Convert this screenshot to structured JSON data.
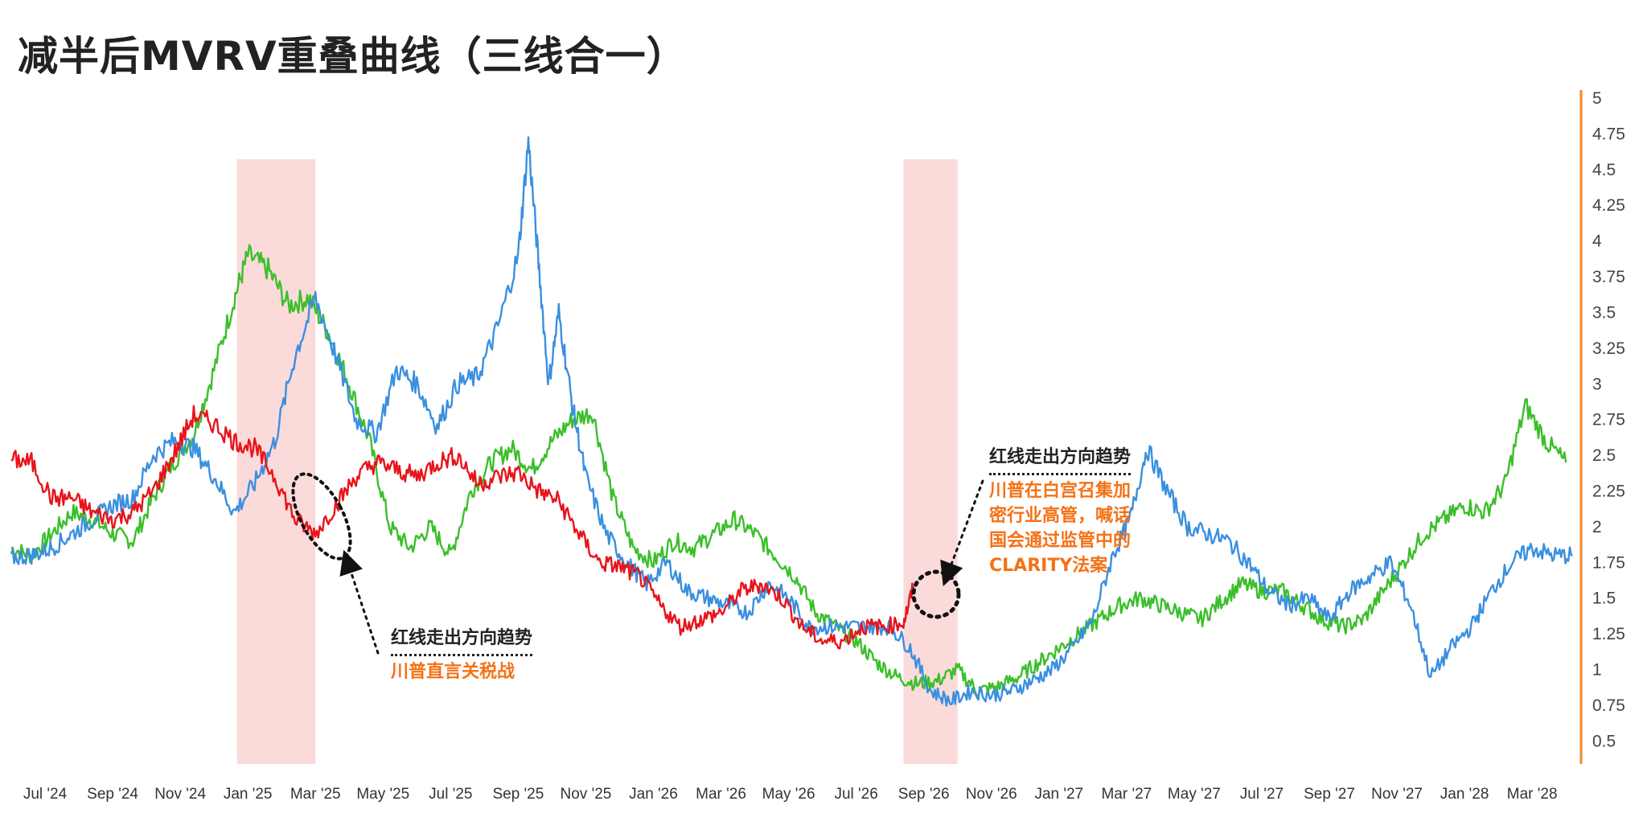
{
  "title": "减半后MVRV重叠曲线（三线合一）",
  "colors": {
    "red": "#e8141b",
    "green": "#3bbf2b",
    "blue": "#3a8fe0",
    "shade": "#fbdada",
    "axis": "#f08a24"
  },
  "annotations": [
    {
      "head": "红线走出方向趋势",
      "body": [
        "川普直言关税战"
      ]
    },
    {
      "head": "红线走出方向趋势",
      "body": [
        "川普在白宫召集加",
        "密行业高管，喊话",
        "国会通过监管中的",
        "CLARITY法案"
      ]
    }
  ],
  "chart_data": {
    "type": "line",
    "title": "减半后MVRV重叠曲线（三线合一）",
    "x_tick_labels": [
      "Jul '24",
      "Sep '24",
      "Nov '24",
      "Jan '25",
      "Mar '25",
      "May '25",
      "Jul '25",
      "Sep '25",
      "Nov '25",
      "Jan '26",
      "Mar '26",
      "May '26",
      "Jul '26",
      "Sep '26",
      "Nov '26",
      "Jan '27",
      "Mar '27",
      "May '27",
      "Jul '27",
      "Sep '27",
      "Nov '27",
      "Jan '28",
      "Mar '28"
    ],
    "ylim": [
      0.35,
      5
    ],
    "y_ticks": [
      0.5,
      0.75,
      1,
      1.25,
      1.5,
      1.75,
      2,
      2.25,
      2.5,
      2.75,
      3,
      3.25,
      3.5,
      3.75,
      4,
      4.25,
      4.5,
      4.75,
      5
    ],
    "y_axis_side": "right",
    "x_range": [
      0,
      23.2
    ],
    "shaded_regions": [
      [
        3.34,
        4.5
      ],
      [
        13.2,
        14.0
      ]
    ],
    "series": [
      {
        "color": "red",
        "x": [
          0,
          0.3,
          0.6,
          0.9,
          1.2,
          1.5,
          1.8,
          2.1,
          2.4,
          2.7,
          3.0,
          3.3,
          3.6,
          3.9,
          4.2,
          4.5,
          4.8,
          5.1,
          5.4,
          5.7,
          6.0,
          6.3,
          6.6,
          6.9,
          7.2,
          7.5,
          7.8,
          8.1,
          8.4,
          8.7,
          9.0,
          9.3,
          9.6,
          9.9,
          10.2,
          10.5,
          10.8,
          11.1,
          11.4,
          11.7,
          12.0,
          12.3,
          12.6,
          12.9,
          13.2,
          13.35
        ],
        "values": [
          2.47,
          2.45,
          2.2,
          2.2,
          2.1,
          2.05,
          2.1,
          2.25,
          2.5,
          2.78,
          2.72,
          2.6,
          2.55,
          2.35,
          2.05,
          1.95,
          2.15,
          2.35,
          2.45,
          2.4,
          2.35,
          2.45,
          2.5,
          2.3,
          2.35,
          2.38,
          2.25,
          2.18,
          1.95,
          1.75,
          1.72,
          1.65,
          1.45,
          1.3,
          1.35,
          1.4,
          1.55,
          1.6,
          1.5,
          1.3,
          1.2,
          1.2,
          1.3,
          1.3,
          1.33,
          1.58
        ]
      },
      {
        "color": "green",
        "x": [
          0,
          0.3,
          0.6,
          0.9,
          1.2,
          1.5,
          1.8,
          2.1,
          2.4,
          2.7,
          3.0,
          3.3,
          3.5,
          3.8,
          4.1,
          4.4,
          4.7,
          5.0,
          5.3,
          5.6,
          5.9,
          6.2,
          6.5,
          6.8,
          7.1,
          7.4,
          7.7,
          8.0,
          8.3,
          8.6,
          8.9,
          9.2,
          9.5,
          9.8,
          10.1,
          10.4,
          10.7,
          11.0,
          11.3,
          11.6,
          11.9,
          12.2,
          12.5,
          12.8,
          13.1,
          13.4,
          13.7,
          14.0,
          14.3,
          14.6,
          14.9,
          15.2,
          15.5,
          15.8,
          16.1,
          16.4,
          16.7,
          17.0,
          17.3,
          17.6,
          17.9,
          18.2,
          18.5,
          18.8,
          19.1,
          19.4,
          19.7,
          20.0,
          20.3,
          20.6,
          20.9,
          21.2,
          21.5,
          21.8,
          22.1,
          22.4,
          22.7,
          23.0
        ],
        "values": [
          1.85,
          1.8,
          1.95,
          2.1,
          2.05,
          1.95,
          1.9,
          2.2,
          2.45,
          2.65,
          3.1,
          3.6,
          3.9,
          3.8,
          3.55,
          3.6,
          3.35,
          3.0,
          2.6,
          2.0,
          1.85,
          2.0,
          1.8,
          2.25,
          2.45,
          2.55,
          2.4,
          2.6,
          2.75,
          2.8,
          2.2,
          1.85,
          1.75,
          1.9,
          1.85,
          1.95,
          2.05,
          1.95,
          1.8,
          1.65,
          1.4,
          1.3,
          1.2,
          1.05,
          0.95,
          0.9,
          0.92,
          1.0,
          0.85,
          0.88,
          0.95,
          1.05,
          1.15,
          1.25,
          1.35,
          1.45,
          1.5,
          1.45,
          1.4,
          1.35,
          1.48,
          1.6,
          1.55,
          1.55,
          1.45,
          1.35,
          1.3,
          1.35,
          1.55,
          1.75,
          1.95,
          2.05,
          2.15,
          2.1,
          2.3,
          2.85,
          2.6,
          2.45
        ]
      },
      {
        "color": "blue",
        "x": [
          0,
          0.3,
          0.6,
          0.9,
          1.2,
          1.5,
          1.8,
          2.1,
          2.4,
          2.7,
          3.0,
          3.3,
          3.6,
          3.9,
          4.2,
          4.5,
          4.8,
          5.1,
          5.4,
          5.7,
          6.0,
          6.3,
          6.6,
          6.9,
          7.2,
          7.5,
          7.65,
          7.8,
          7.95,
          8.1,
          8.3,
          8.5,
          8.8,
          9.1,
          9.4,
          9.7,
          10.0,
          10.3,
          10.6,
          10.9,
          11.2,
          11.5,
          11.8,
          12.1,
          12.4,
          12.7,
          13.0,
          13.3,
          13.6,
          13.9,
          14.2,
          14.5,
          14.8,
          15.1,
          15.4,
          15.7,
          16.0,
          16.3,
          16.55,
          16.8,
          17.1,
          17.4,
          17.7,
          18.0,
          18.3,
          18.6,
          18.9,
          19.2,
          19.5,
          19.8,
          20.1,
          20.4,
          20.7,
          21.0,
          21.3,
          21.6,
          21.9,
          22.2,
          22.5,
          22.8,
          23.1
        ],
        "values": [
          1.78,
          1.8,
          1.85,
          1.95,
          2.05,
          2.15,
          2.2,
          2.5,
          2.6,
          2.55,
          2.35,
          2.1,
          2.3,
          2.6,
          3.2,
          3.6,
          3.2,
          2.75,
          2.65,
          3.1,
          3.0,
          2.7,
          3.0,
          3.05,
          3.4,
          3.9,
          4.7,
          3.85,
          3.0,
          3.5,
          2.85,
          2.35,
          1.95,
          1.75,
          1.6,
          1.75,
          1.55,
          1.5,
          1.45,
          1.4,
          1.6,
          1.5,
          1.3,
          1.3,
          1.3,
          1.3,
          1.3,
          1.15,
          0.85,
          0.78,
          0.85,
          0.82,
          0.85,
          0.92,
          1.0,
          1.15,
          1.35,
          1.8,
          2.05,
          2.55,
          2.25,
          2.0,
          1.95,
          1.9,
          1.75,
          1.55,
          1.45,
          1.5,
          1.35,
          1.55,
          1.65,
          1.75,
          1.45,
          0.95,
          1.15,
          1.3,
          1.55,
          1.75,
          1.85,
          1.8,
          1.8
        ]
      }
    ]
  }
}
